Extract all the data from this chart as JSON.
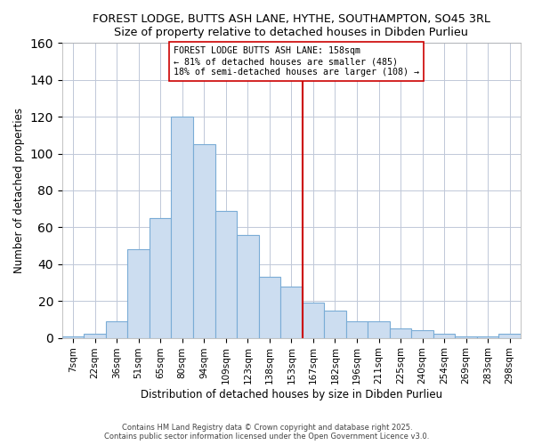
{
  "title": "FOREST LODGE, BUTTS ASH LANE, HYTHE, SOUTHAMPTON, SO45 3RL",
  "subtitle": "Size of property relative to detached houses in Dibden Purlieu",
  "xlabel": "Distribution of detached houses by size in Dibden Purlieu",
  "ylabel": "Number of detached properties",
  "bar_labels": [
    "7sqm",
    "22sqm",
    "36sqm",
    "51sqm",
    "65sqm",
    "80sqm",
    "94sqm",
    "109sqm",
    "123sqm",
    "138sqm",
    "153sqm",
    "167sqm",
    "182sqm",
    "196sqm",
    "211sqm",
    "225sqm",
    "240sqm",
    "254sqm",
    "269sqm",
    "283sqm",
    "298sqm"
  ],
  "bar_values": [
    1,
    2,
    9,
    48,
    65,
    120,
    105,
    69,
    56,
    33,
    28,
    19,
    15,
    9,
    9,
    5,
    4,
    2,
    1,
    1,
    2
  ],
  "bar_color": "#ccddf0",
  "bar_edge_color": "#7aacd6",
  "marker_line_color": "#cc0000",
  "marker_index": 10,
  "annotation_text": "FOREST LODGE BUTTS ASH LANE: 158sqm\n← 81% of detached houses are smaller (485)\n18% of semi-detached houses are larger (108) →",
  "ylim": [
    0,
    160
  ],
  "yticks": [
    0,
    20,
    40,
    60,
    80,
    100,
    120,
    140,
    160
  ],
  "footer1": "Contains HM Land Registry data © Crown copyright and database right 2025.",
  "footer2": "Contains public sector information licensed under the Open Government Licence v3.0.",
  "background_color": "#ffffff",
  "grid_color": "#c0c8d8"
}
